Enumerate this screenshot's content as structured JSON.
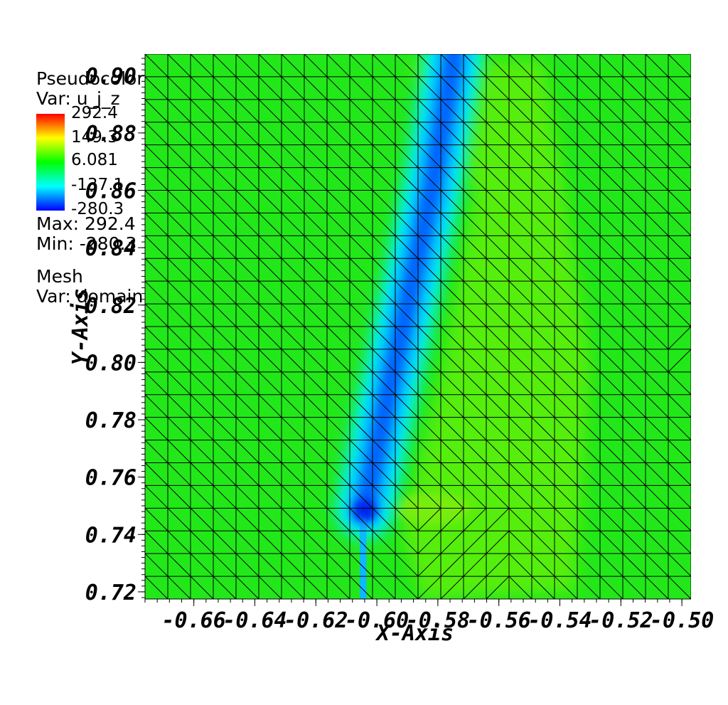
{
  "legend": {
    "plot1_type": "Pseudocolor",
    "plot1_var": "Var: u_j_z",
    "colorbar_labels": [
      "292.4",
      "149.3",
      "6.081",
      "-137.1",
      "-280.3"
    ],
    "max_text": "Max:  292.4",
    "min_text": "Min: -280.3",
    "plot2_type": "Mesh",
    "plot2_var": "Var: domain"
  },
  "chart_data": {
    "type": "heatmap",
    "variable": "u_j_z",
    "colormap": "hot (blue-cyan-green-yellow-red)",
    "value_range": [
      -280.3,
      292.4
    ],
    "xlabel": "X-Axis",
    "ylabel": "Y-Axis",
    "xlim": [
      -0.676,
      -0.497
    ],
    "ylim": [
      0.7175,
      0.9075
    ],
    "x_ticks": [
      -0.66,
      -0.64,
      -0.62,
      -0.6,
      -0.58,
      -0.56,
      -0.54,
      -0.52,
      -0.5
    ],
    "x_tick_labels": [
      "-0.66",
      "-0.64",
      "-0.62",
      "-0.60",
      "-0.58",
      "-0.56",
      "-0.54",
      "-0.52",
      "-0.50"
    ],
    "y_ticks": [
      0.72,
      0.74,
      0.76,
      0.78,
      0.8,
      0.82,
      0.84,
      0.86,
      0.88,
      0.9
    ],
    "y_tick_labels": [
      "0.72",
      "0.74",
      "0.76",
      "0.78",
      "0.80",
      "0.82",
      "0.84",
      "0.86",
      "0.88",
      "0.90"
    ],
    "mesh": "triangular, approx 24 x 24 cells",
    "features": {
      "background_value": 6.081,
      "low_band_path": [
        [
          -0.604,
          0.7485
        ],
        [
          -0.598,
          0.78
        ],
        [
          -0.59,
          0.82
        ],
        [
          -0.582,
          0.86
        ],
        [
          -0.575,
          0.905
        ]
      ],
      "low_band_min_value": -280.3,
      "low_tail_x": -0.605
    }
  }
}
